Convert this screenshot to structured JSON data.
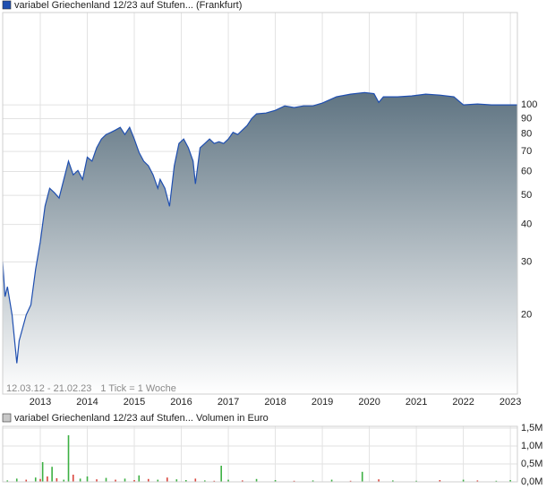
{
  "chart_data": [
    {
      "type": "area",
      "title": "variabel Griechenland 12/23 auf Stufen... (Frankfurt)",
      "date_range": "12.03.12 - 21.02.23",
      "tick_note": "1 Tick = 1 Woche",
      "log_scale": true,
      "grid": true,
      "color": "#1f4fb0",
      "fill_top": "#5f7482",
      "xlim": [
        2012.2,
        2023.15
      ],
      "xticks": [
        2013,
        2014,
        2015,
        2016,
        2017,
        2018,
        2019,
        2020,
        2021,
        2022,
        2023
      ],
      "ylim": [
        10.9,
        203
      ],
      "yticks": [
        20,
        30,
        40,
        50,
        60,
        70,
        80,
        90,
        100
      ],
      "x": [
        2012.2,
        2012.25,
        2012.3,
        2012.4,
        2012.5,
        2012.55,
        2012.7,
        2012.8,
        2012.9,
        2013.0,
        2013.1,
        2013.2,
        2013.3,
        2013.4,
        2013.5,
        2013.6,
        2013.7,
        2013.8,
        2013.9,
        2014.0,
        2014.1,
        2014.2,
        2014.3,
        2014.4,
        2014.5,
        2014.6,
        2014.7,
        2014.8,
        2014.9,
        2015.0,
        2015.1,
        2015.2,
        2015.3,
        2015.4,
        2015.5,
        2015.55,
        2015.65,
        2015.75,
        2015.85,
        2015.95,
        2016.05,
        2016.15,
        2016.25,
        2016.3,
        2016.4,
        2016.5,
        2016.6,
        2016.7,
        2016.8,
        2016.9,
        2017.0,
        2017.1,
        2017.2,
        2017.3,
        2017.4,
        2017.5,
        2017.6,
        2017.8,
        2018.0,
        2018.2,
        2018.4,
        2018.6,
        2018.8,
        2019.0,
        2019.3,
        2019.6,
        2019.9,
        2020.1,
        2020.2,
        2020.3,
        2020.6,
        2020.9,
        2021.2,
        2021.5,
        2021.8,
        2022.0,
        2022.3,
        2022.6,
        2022.9,
        2023.15
      ],
      "values": [
        30,
        23,
        24.8,
        20,
        13.8,
        16.4,
        20,
        21.6,
        28.4,
        35,
        46,
        52.8,
        51,
        49,
        56.5,
        65,
        58.5,
        60.5,
        56.5,
        67,
        65,
        72,
        77,
        79.7,
        81,
        82.5,
        84.2,
        79.7,
        84.2,
        77,
        69.5,
        65,
        62.7,
        58.5,
        52.8,
        56.5,
        52.8,
        46,
        62.7,
        74.4,
        77,
        72,
        65,
        54.6,
        72,
        74.4,
        77,
        74.4,
        75.4,
        74.4,
        77,
        81,
        79.7,
        82.5,
        85.4,
        90.2,
        93.4,
        94,
        95.9,
        99.3,
        98,
        99.3,
        99.3,
        101.4,
        106.4,
        108.6,
        110,
        109,
        102,
        106.4,
        106.4,
        107.1,
        108.6,
        107.8,
        106.4,
        100,
        100.7,
        100,
        100,
        100
      ]
    },
    {
      "type": "bar",
      "title": "variabel Griechenland 12/23 auf Stufen... Volumen in Euro",
      "xlim": [
        2012.2,
        2023.15
      ],
      "ylim": [
        0,
        1550000
      ],
      "yticks": [
        {
          "value": 0,
          "label": "0,0M"
        },
        {
          "value": 500000,
          "label": "0,5M"
        },
        {
          "value": 1000000,
          "label": "1,0M"
        },
        {
          "value": 1500000,
          "label": "1,5M"
        }
      ],
      "x": [
        2012.3,
        2012.5,
        2012.7,
        2012.9,
        2013.0,
        2013.05,
        2013.15,
        2013.25,
        2013.35,
        2013.5,
        2013.6,
        2013.7,
        2013.85,
        2014.0,
        2014.2,
        2014.4,
        2014.6,
        2014.8,
        2015.0,
        2015.1,
        2015.3,
        2015.5,
        2015.7,
        2015.9,
        2016.1,
        2016.3,
        2016.5,
        2016.7,
        2016.85,
        2017.0,
        2017.3,
        2017.6,
        2018.0,
        2018.4,
        2018.8,
        2019.2,
        2019.6,
        2019.85,
        2020.2,
        2020.5,
        2021.0,
        2021.5,
        2022.0,
        2022.3,
        2022.7,
        2023.0
      ],
      "values": [
        40000,
        90000,
        60000,
        120000,
        80000,
        550000,
        150000,
        420000,
        100000,
        60000,
        1300000,
        200000,
        90000,
        150000,
        70000,
        110000,
        60000,
        90000,
        50000,
        180000,
        80000,
        60000,
        120000,
        70000,
        50000,
        90000,
        40000,
        30000,
        450000,
        60000,
        40000,
        80000,
        50000,
        30000,
        40000,
        60000,
        30000,
        280000,
        70000,
        40000,
        30000,
        50000,
        60000,
        40000,
        30000,
        50000
      ],
      "colors": [
        "#3cb043",
        "#3cb043",
        "#d9453d",
        "#3cb043",
        "#d9453d",
        "#3cb043",
        "#d9453d",
        "#3cb043",
        "#d9453d",
        "#3cb043",
        "#3cb043",
        "#d9453d",
        "#3cb043",
        "#3cb043",
        "#d9453d",
        "#3cb043",
        "#d9453d",
        "#3cb043",
        "#d9453d",
        "#3cb043",
        "#d9453d",
        "#3cb043",
        "#d9453d",
        "#3cb043",
        "#3cb043",
        "#d9453d",
        "#3cb043",
        "#d9453d",
        "#3cb043",
        "#3cb043",
        "#d9453d",
        "#3cb043",
        "#3cb043",
        "#d9453d",
        "#3cb043",
        "#3cb043",
        "#d9453d",
        "#3cb043",
        "#d9453d",
        "#3cb043",
        "#3cb043",
        "#d9453d",
        "#3cb043",
        "#d9453d",
        "#3cb043",
        "#3cb043"
      ]
    }
  ]
}
